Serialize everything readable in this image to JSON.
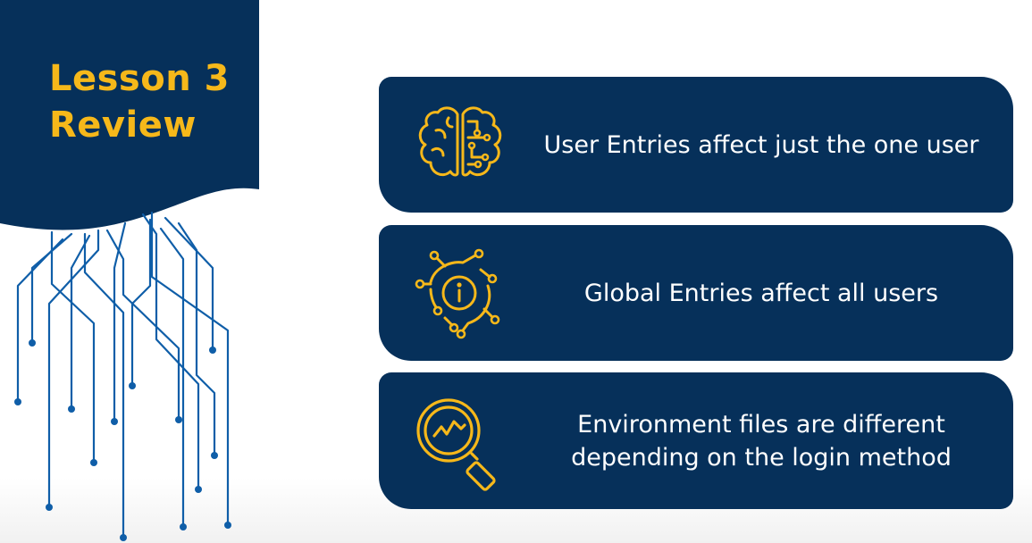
{
  "slide": {
    "title_line_1": "Lesson 3",
    "title_line_2": "Review"
  },
  "colors": {
    "navy": "#06305a",
    "accent_gold": "#f6b81a",
    "circuit_blue": "#0f5ea8",
    "text_white": "#ffffff"
  },
  "cards": [
    {
      "icon": "brain-circuit-icon",
      "text": "User Entries affect just the one user"
    },
    {
      "icon": "info-circuit-icon",
      "text": "Global Entries affect all users"
    },
    {
      "icon": "magnifier-chart-icon",
      "line_1": "Environment files are different",
      "line_2": "depending on the login method"
    }
  ]
}
